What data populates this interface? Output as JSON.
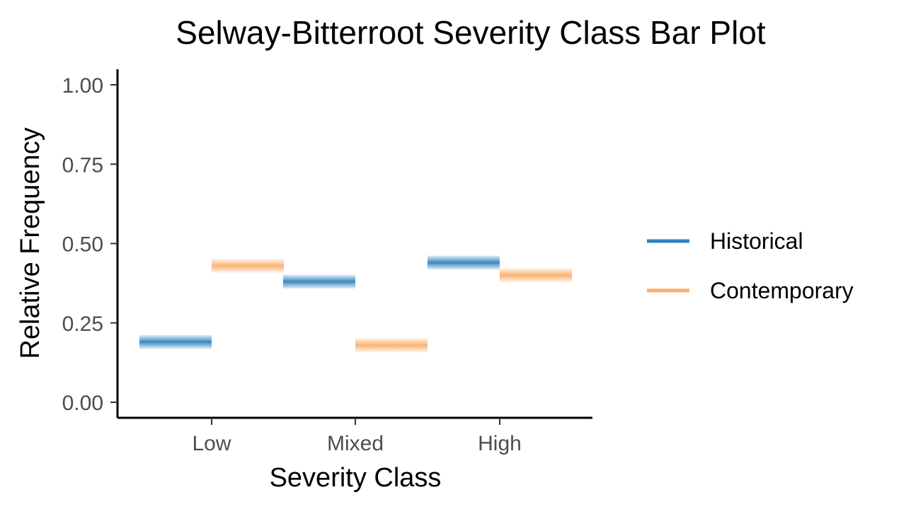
{
  "chart_data": {
    "type": "bar",
    "title": "Selway-Bitterroot Severity Class Bar Plot",
    "xlabel": "Severity Class",
    "ylabel": "Relative Frequency",
    "categories": [
      "Low",
      "Mixed",
      "High"
    ],
    "series": [
      {
        "name": "Historical",
        "color": "#3182bd",
        "values": [
          0.19,
          0.38,
          0.44
        ]
      },
      {
        "name": "Contemporary",
        "color": "#fdae6b",
        "values": [
          0.43,
          0.18,
          0.4
        ]
      }
    ],
    "ylim": [
      0,
      1
    ],
    "yticks": [
      "0.00",
      "0.25",
      "0.50",
      "0.75",
      "1.00"
    ],
    "grid": false,
    "legend_position": "right"
  }
}
